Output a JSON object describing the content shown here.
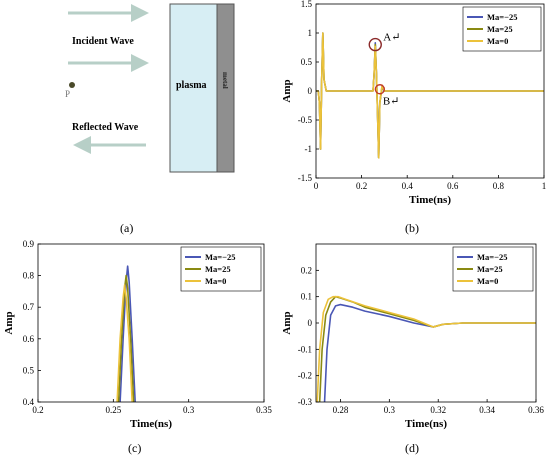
{
  "colors": {
    "ma_neg25": "#4a57b5",
    "ma_25": "#8a8a12",
    "ma_0": "#ecc23a",
    "arrow": "#b7cfc7",
    "plasma_fill": "#d7eef4",
    "metal_fill": "#8f8f8f",
    "marker_circle": "#8b2a2a",
    "point_dot": "#4a4a2a"
  },
  "diagram": {
    "incident_label": "Incident Wave",
    "reflected_label": "Reflected Wave",
    "plasma_label": "plasma",
    "metal_label": "metal",
    "point_label": "P",
    "caption": "(a)"
  },
  "legend": [
    "Ma=−25",
    "Ma=25",
    "Ma=0"
  ],
  "chart_data": [
    {
      "id": "b",
      "type": "line",
      "caption": "(b)",
      "xlabel": "Time(ns)",
      "ylabel": "Amp",
      "xlim": [
        0,
        1
      ],
      "ylim": [
        -1.5,
        1.5
      ],
      "xticks": [
        "0",
        "0.2",
        "0.4",
        "0.6",
        "0.8",
        "1"
      ],
      "yticks": [
        "-1.5",
        "-1",
        "-0.5",
        "0",
        "0.5",
        "1",
        "1.5"
      ],
      "annotations": [
        {
          "text": "A↵",
          "x": 0.26,
          "y": 0.8
        },
        {
          "text": "B↵",
          "x": 0.28,
          "y": 0.03
        }
      ],
      "legend_position": "top-right",
      "series": [
        {
          "name": "Ma=−25",
          "x": [
            0,
            0.01,
            0.015,
            0.02,
            0.025,
            0.03,
            0.035,
            0.045,
            0.2,
            0.25,
            0.255,
            0.26,
            0.265,
            0.27,
            0.275,
            0.28,
            0.29,
            0.3,
            0.35,
            1
          ],
          "y": [
            0,
            0,
            -0.2,
            -1.0,
            0.2,
            1.0,
            0.2,
            0,
            0,
            0,
            0.3,
            0.83,
            0.3,
            -0.4,
            -1.15,
            -0.2,
            0.07,
            0,
            0,
            0
          ]
        },
        {
          "name": "Ma=25",
          "x": [
            0,
            0.01,
            0.015,
            0.02,
            0.025,
            0.03,
            0.035,
            0.045,
            0.2,
            0.25,
            0.255,
            0.26,
            0.265,
            0.27,
            0.275,
            0.28,
            0.29,
            0.3,
            0.35,
            1
          ],
          "y": [
            0,
            0,
            -0.2,
            -1.0,
            0.2,
            1.0,
            0.2,
            0,
            0,
            0,
            0.3,
            0.8,
            0.3,
            -0.4,
            -1.15,
            -0.2,
            0.09,
            0,
            0,
            0
          ]
        },
        {
          "name": "Ma=0",
          "x": [
            0,
            0.01,
            0.015,
            0.02,
            0.025,
            0.03,
            0.035,
            0.045,
            0.2,
            0.25,
            0.255,
            0.26,
            0.265,
            0.27,
            0.275,
            0.28,
            0.29,
            0.3,
            0.35,
            1
          ],
          "y": [
            0,
            0,
            -0.2,
            -1.0,
            0.2,
            1.0,
            0.2,
            0,
            0,
            0,
            0.3,
            0.77,
            0.3,
            -0.4,
            -1.15,
            -0.2,
            0.1,
            0,
            0,
            0
          ]
        }
      ]
    },
    {
      "id": "c",
      "type": "line",
      "caption": "(c)",
      "xlabel": "Time(ns)",
      "ylabel": "Amp",
      "xlim": [
        0.2,
        0.35
      ],
      "ylim": [
        0.4,
        0.9
      ],
      "xticks": [
        "0.2",
        "0.25",
        "0.3",
        "0.35"
      ],
      "yticks": [
        "0.4",
        "0.5",
        "0.6",
        "0.7",
        "0.8",
        "0.9"
      ],
      "legend_position": "top-right",
      "series": [
        {
          "name": "Ma=−25",
          "x": [
            0.2545,
            0.2565,
            0.2585,
            0.2595,
            0.2605,
            0.2625,
            0.2645
          ],
          "y": [
            0.4,
            0.6,
            0.78,
            0.83,
            0.78,
            0.6,
            0.4
          ]
        },
        {
          "name": "Ma=25",
          "x": [
            0.2535,
            0.2555,
            0.2575,
            0.2585,
            0.2595,
            0.2615,
            0.2635
          ],
          "y": [
            0.4,
            0.6,
            0.76,
            0.8,
            0.76,
            0.6,
            0.4
          ]
        },
        {
          "name": "Ma=0",
          "x": [
            0.2525,
            0.2545,
            0.2565,
            0.2575,
            0.2585,
            0.2605,
            0.2625
          ],
          "y": [
            0.4,
            0.6,
            0.73,
            0.77,
            0.73,
            0.6,
            0.4
          ]
        }
      ]
    },
    {
      "id": "d",
      "type": "line",
      "caption": "(d)",
      "xlabel": "Time(ns)",
      "ylabel": "Amp",
      "xlim": [
        0.27,
        0.36
      ],
      "ylim": [
        -0.3,
        0.3
      ],
      "xticks": [
        "0.28",
        "0.3",
        "0.32",
        "0.34",
        "0.36"
      ],
      "yticks": [
        "-0.3",
        "-0.2",
        "-0.1",
        "0",
        "0.1",
        "0.2"
      ],
      "legend_position": "top-right",
      "series": [
        {
          "name": "Ma=−25",
          "x": [
            0.2735,
            0.2745,
            0.276,
            0.278,
            0.28,
            0.285,
            0.29,
            0.3,
            0.31,
            0.318,
            0.322,
            0.33,
            0.36
          ],
          "y": [
            -0.3,
            -0.1,
            0.03,
            0.065,
            0.07,
            0.06,
            0.045,
            0.025,
            0.0,
            -0.015,
            -0.005,
            0.0,
            0.0
          ]
        },
        {
          "name": "Ma=25",
          "x": [
            0.2715,
            0.2725,
            0.274,
            0.276,
            0.278,
            0.28,
            0.285,
            0.29,
            0.3,
            0.31,
            0.318,
            0.322,
            0.33,
            0.36
          ],
          "y": [
            -0.3,
            -0.1,
            0.03,
            0.08,
            0.1,
            0.095,
            0.08,
            0.06,
            0.035,
            0.01,
            -0.015,
            -0.005,
            0.0,
            0.0
          ]
        },
        {
          "name": "Ma=0",
          "x": [
            0.2705,
            0.2715,
            0.273,
            0.275,
            0.277,
            0.279,
            0.282,
            0.29,
            0.3,
            0.31,
            0.318,
            0.322,
            0.33,
            0.36
          ],
          "y": [
            -0.3,
            -0.1,
            0.04,
            0.09,
            0.1,
            0.1,
            0.09,
            0.065,
            0.04,
            0.015,
            -0.015,
            -0.005,
            0.0,
            0.0
          ]
        }
      ]
    }
  ]
}
